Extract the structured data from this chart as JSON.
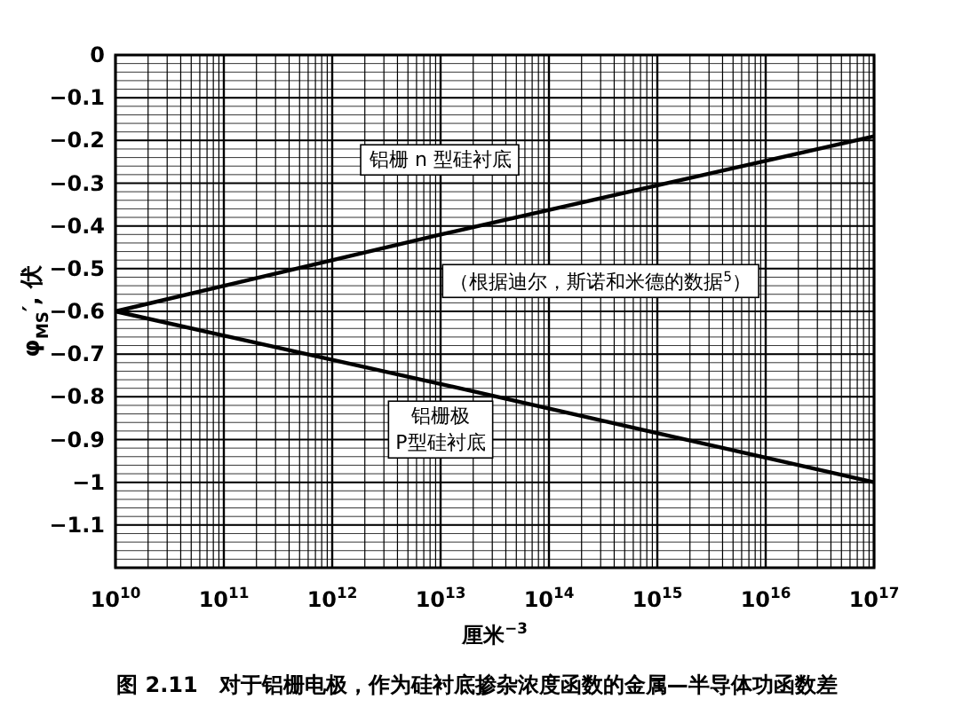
{
  "chart_data": {
    "type": "line",
    "log": "x",
    "xlabel": "厘米$^{−3}$",
    "ylabel": "φ$_{MS}$′, 伏",
    "xlim": [
      10000000000.0,
      1e+17
    ],
    "xticks": [
      {
        "value": 10000000000.0,
        "label": "10$^{10}$"
      },
      {
        "value": 100000000000.0,
        "label": "10$^{11}$"
      },
      {
        "value": 1000000000000.0,
        "label": "10$^{12}$"
      },
      {
        "value": 10000000000000.0,
        "label": "10$^{13}$"
      },
      {
        "value": 100000000000000.0,
        "label": "10$^{14}$"
      },
      {
        "value": 1000000000000000.0,
        "label": "10$^{15}$"
      },
      {
        "value": 1e+16,
        "label": "10$^{16}$"
      },
      {
        "value": 1e+17,
        "label": "10$^{17}$"
      }
    ],
    "ylim": [
      -1.2,
      0
    ],
    "yticks": [
      0,
      -0.1,
      -0.2,
      -0.3,
      -0.4,
      -0.5,
      -0.6,
      -0.7,
      -0.8,
      -0.9,
      -1.0,
      -1.1
    ],
    "grid": true,
    "marker": "none",
    "line_style": "solid",
    "series": [
      {
        "name": "铝栅 n 型硅衬底",
        "color": "#000000",
        "x": [
          10000000000.0,
          10000000000000.0,
          1e+17
        ],
        "values": [
          -0.6,
          -0.42,
          -0.19
        ]
      },
      {
        "name": "铝栅极 P型硅衬底",
        "color": "#000000",
        "x": [
          10000000000.0,
          10000000000000.0,
          1e+17
        ],
        "values": [
          -0.6,
          -0.77,
          -1.0
        ]
      }
    ],
    "annotations": [
      {
        "text": "（根据迪尔，斯诺和米德的数据$^{5}$）"
      },
      "图 2.11　对于铝栅电极，作为硅衬底掺杂浓度函数的金属—半导体功函数差"
    ]
  }
}
